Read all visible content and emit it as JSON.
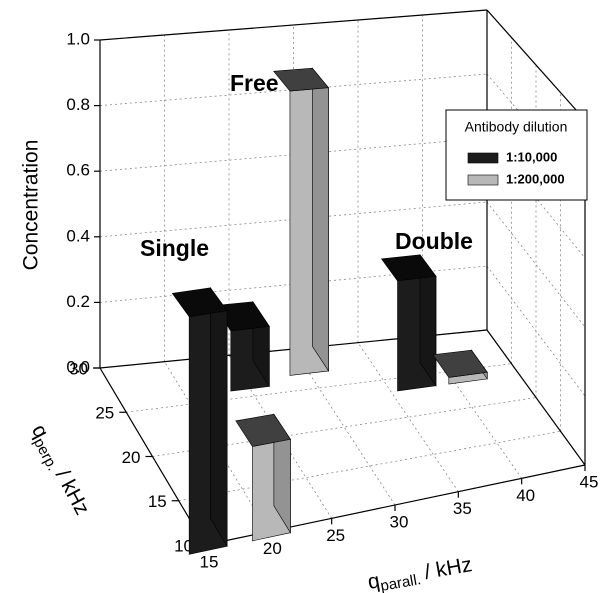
{
  "chart_data": {
    "type": "bar3d",
    "zlabel": "Concentration",
    "xlabel": {
      "symbol": "q",
      "subscript": "parall.",
      "unit": "/ kHz"
    },
    "ylabel": {
      "symbol": "q",
      "subscript": "perp.",
      "unit": "/ kHz"
    },
    "xlim": [
      15,
      45
    ],
    "xticks": [
      15,
      20,
      25,
      30,
      35,
      40,
      45
    ],
    "ylim": [
      10,
      30
    ],
    "yticks": [
      10,
      15,
      20,
      25,
      30
    ],
    "zlim": [
      0,
      1
    ],
    "zticks": [
      {
        "value": 0,
        "label": "0.0"
      },
      0.2,
      0.4,
      0.6,
      0.8,
      {
        "value": 1,
        "label": "1.0"
      }
    ],
    "grid": true,
    "legend": {
      "title": "Antibody dilution",
      "position": "upper right"
    },
    "series": [
      {
        "name": "1:10,000",
        "color": "#1c1c1c",
        "x": [
          15,
          25,
          37
        ],
        "y": [
          11,
          27.5,
          25
        ],
        "values": [
          0.62,
          0.18,
          0.33
        ]
      },
      {
        "name": "1:200,000",
        "color": "#b8b8b8",
        "x": [
          20,
          30,
          41
        ],
        "y": [
          11,
          28.5,
          25
        ],
        "values": [
          0.25,
          0.86,
          0.02
        ]
      }
    ],
    "annotations": [
      "Single",
      "Free",
      "Double"
    ]
  }
}
